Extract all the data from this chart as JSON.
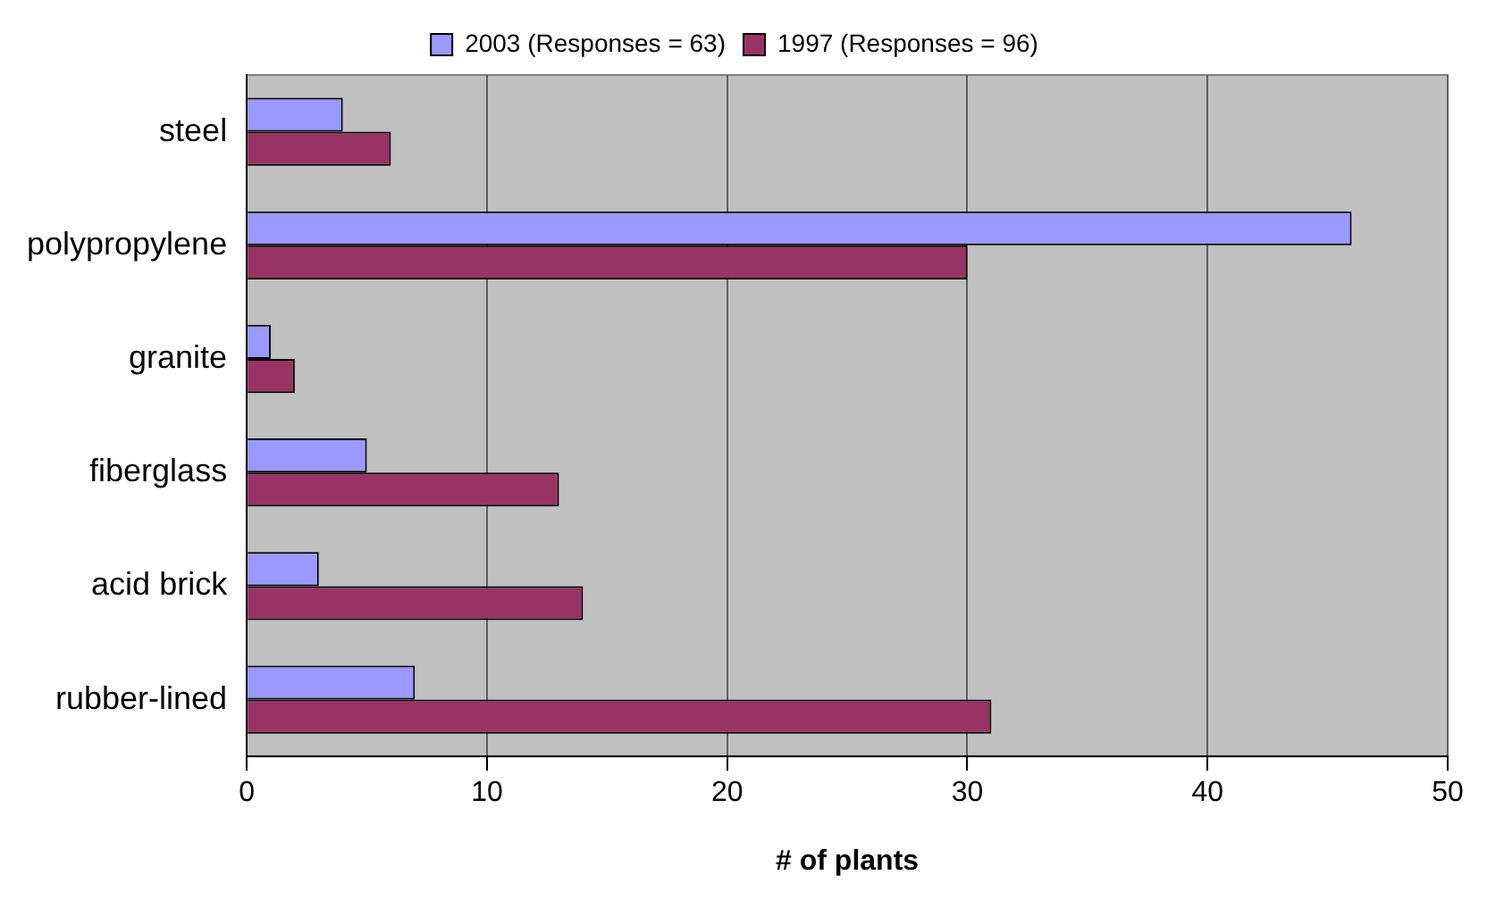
{
  "chart_data": {
    "type": "bar",
    "orientation": "horizontal",
    "xlabel": "# of plants",
    "categories": [
      "steel",
      "polypropylene",
      "granite",
      "fiberglass",
      "acid brick",
      "rubber-lined"
    ],
    "series": [
      {
        "name": "2003 (Responses = 63)",
        "color": "#9999ff",
        "values": [
          4,
          46,
          1,
          5,
          3,
          7
        ]
      },
      {
        "name": "1997 (Responses = 96)",
        "color": "#993366",
        "values": [
          6,
          30,
          2,
          13,
          14,
          31
        ]
      }
    ],
    "xlim": [
      0,
      50
    ],
    "xticks": [
      0,
      10,
      20,
      30,
      40,
      50
    ],
    "grid": "x",
    "legend": "top"
  }
}
